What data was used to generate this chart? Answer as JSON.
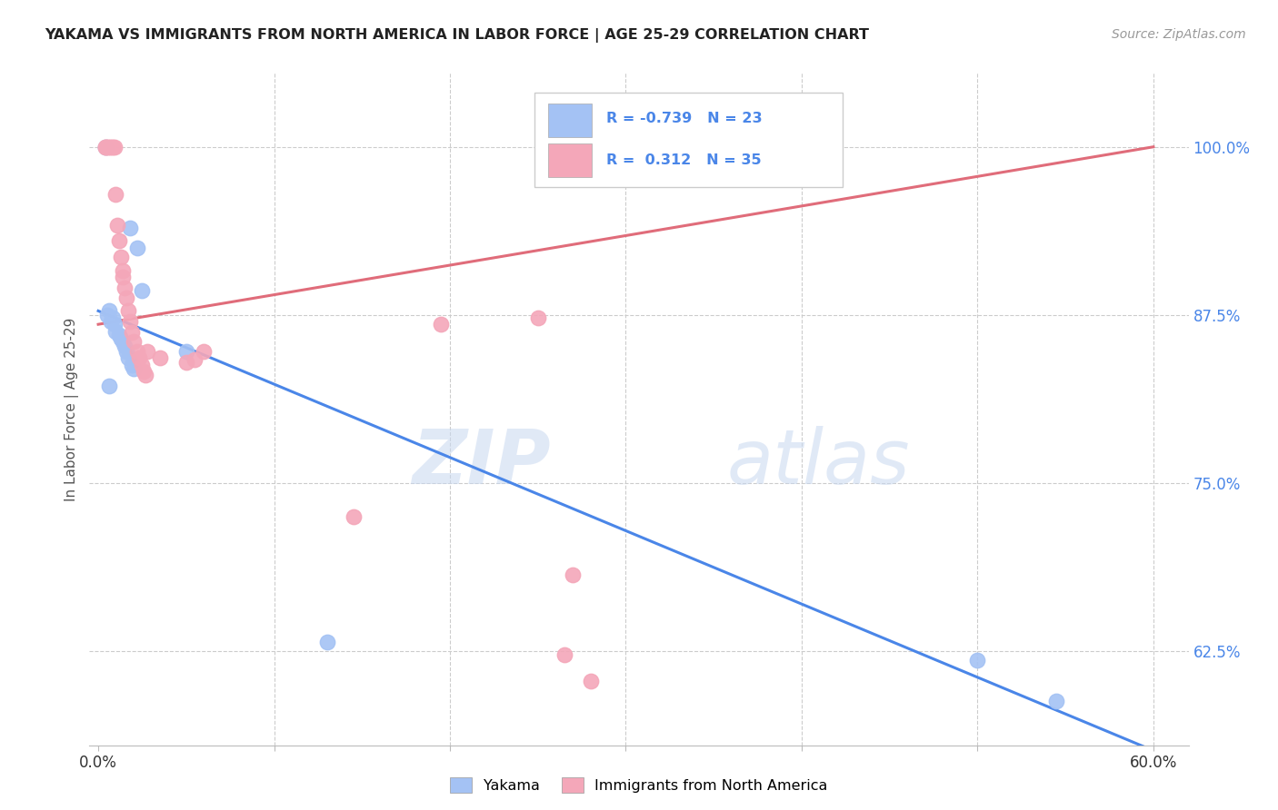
{
  "title": "YAKAMA VS IMMIGRANTS FROM NORTH AMERICA IN LABOR FORCE | AGE 25-29 CORRELATION CHART",
  "source": "Source: ZipAtlas.com",
  "ylabel": "In Labor Force | Age 25-29",
  "xlim": [
    -0.005,
    0.62
  ],
  "ylim": [
    0.555,
    1.055
  ],
  "xticks": [
    0.0,
    0.1,
    0.2,
    0.3,
    0.4,
    0.5,
    0.6
  ],
  "xticklabels": [
    "0.0%",
    "",
    "",
    "",
    "",
    "",
    "60.0%"
  ],
  "yticks": [
    0.625,
    0.75,
    0.875,
    1.0
  ],
  "yticklabels": [
    "62.5%",
    "75.0%",
    "87.5%",
    "100.0%"
  ],
  "blue_color": "#a4c2f4",
  "pink_color": "#f4a7b9",
  "blue_line_color": "#4a86e8",
  "pink_line_color": "#e06c7a",
  "legend_r_blue": "-0.739",
  "legend_n_blue": "23",
  "legend_r_pink": "0.312",
  "legend_n_pink": "35",
  "legend_label_blue": "Yakama",
  "legend_label_pink": "Immigrants from North America",
  "watermark_zip": "ZIP",
  "watermark_atlas": "atlas",
  "background_color": "#ffffff",
  "grid_color": "#cccccc",
  "blue_intercept": 0.878,
  "blue_slope": -0.545,
  "pink_intercept": 0.868,
  "pink_slope": 0.22,
  "yakama_x": [
    0.004,
    0.018,
    0.022,
    0.025,
    0.005,
    0.006,
    0.007,
    0.008,
    0.009,
    0.01,
    0.012,
    0.013,
    0.014,
    0.015,
    0.016,
    0.017,
    0.019,
    0.02,
    0.05,
    0.13,
    0.5,
    0.545,
    0.006
  ],
  "yakama_y": [
    1.0,
    0.94,
    0.925,
    0.893,
    0.875,
    0.878,
    0.87,
    0.873,
    0.868,
    0.863,
    0.86,
    0.857,
    0.855,
    0.852,
    0.848,
    0.843,
    0.838,
    0.835,
    0.848,
    0.632,
    0.618,
    0.588,
    0.822
  ],
  "immigrants_x": [
    0.004,
    0.004,
    0.005,
    0.006,
    0.007,
    0.008,
    0.009,
    0.01,
    0.011,
    0.012,
    0.013,
    0.014,
    0.014,
    0.015,
    0.016,
    0.017,
    0.018,
    0.019,
    0.02,
    0.022,
    0.023,
    0.025,
    0.026,
    0.027,
    0.028,
    0.035,
    0.05,
    0.055,
    0.06,
    0.145,
    0.195,
    0.25,
    0.265,
    0.28,
    0.27
  ],
  "immigrants_y": [
    1.0,
    1.0,
    1.0,
    1.0,
    1.0,
    1.0,
    1.0,
    0.965,
    0.942,
    0.93,
    0.918,
    0.908,
    0.903,
    0.895,
    0.888,
    0.878,
    0.87,
    0.862,
    0.855,
    0.848,
    0.843,
    0.838,
    0.833,
    0.83,
    0.848,
    0.843,
    0.84,
    0.842,
    0.848,
    0.725,
    0.868,
    0.873,
    0.622,
    0.603,
    0.682
  ]
}
